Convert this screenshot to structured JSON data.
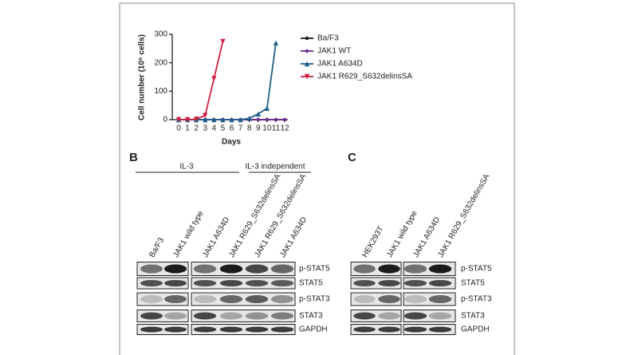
{
  "chart_data": {
    "type": "line",
    "ylabel": "Cell number (10⁶ cells)",
    "xlabel": "Days",
    "x": [
      0,
      1,
      2,
      3,
      4,
      5,
      6,
      7,
      8,
      9,
      10,
      11,
      12
    ],
    "xlim": [
      0,
      12
    ],
    "xticks": [
      0,
      1,
      2,
      3,
      4,
      5,
      6,
      7,
      8,
      9,
      10,
      11,
      12
    ],
    "ylim": [
      0,
      300
    ],
    "yticks": [
      0,
      100,
      200,
      300
    ],
    "series": [
      {
        "name": "Ba/F3",
        "color": "#1a1a1a",
        "marker": "circle",
        "values": [
          0,
          0,
          0,
          0,
          0,
          0,
          0,
          0,
          0,
          0,
          0,
          0,
          0
        ]
      },
      {
        "name": "JAK1 WT",
        "color": "#6a2c8e",
        "marker": "circle",
        "values": [
          0,
          0,
          0,
          0,
          0,
          0,
          0,
          0,
          0,
          0,
          0,
          0,
          0
        ]
      },
      {
        "name": "JAK1 A634D",
        "color": "#1f5f8b",
        "marker": "triangle-up",
        "values": [
          0,
          0,
          0,
          0,
          0,
          0,
          0,
          0,
          5,
          20,
          40,
          270,
          null
        ]
      },
      {
        "name": "JAK1 R629_S632delinsSA",
        "color": "#d0203f",
        "marker": "triangle-down",
        "values": [
          0,
          0,
          2,
          15,
          145,
          275,
          null,
          null,
          null,
          null,
          null,
          null,
          null
        ]
      }
    ]
  },
  "panel_b": {
    "letter": "B",
    "groups": [
      "IL-3",
      "IL-3 independent"
    ],
    "lanes": [
      "Ba/F3",
      "JAK1 wild type",
      "JAK1 A634D",
      "JAK1 R629_S632delinsSA",
      "JAK1 R629_S632delinsSA",
      "JAK1 A634D"
    ],
    "rows": [
      "p-STAT5",
      "STAT5",
      "p-STAT3",
      "STAT3",
      "GAPDH"
    ]
  },
  "panel_c": {
    "letter": "C",
    "lanes": [
      "HEK293T",
      "JAK1 wild type",
      "JAK1 A634D",
      "JAK1 R629_S632delinsSA"
    ],
    "rows": [
      "p-STAT5",
      "STAT5",
      "p-STAT3",
      "STAT3",
      "GAPDH"
    ]
  }
}
